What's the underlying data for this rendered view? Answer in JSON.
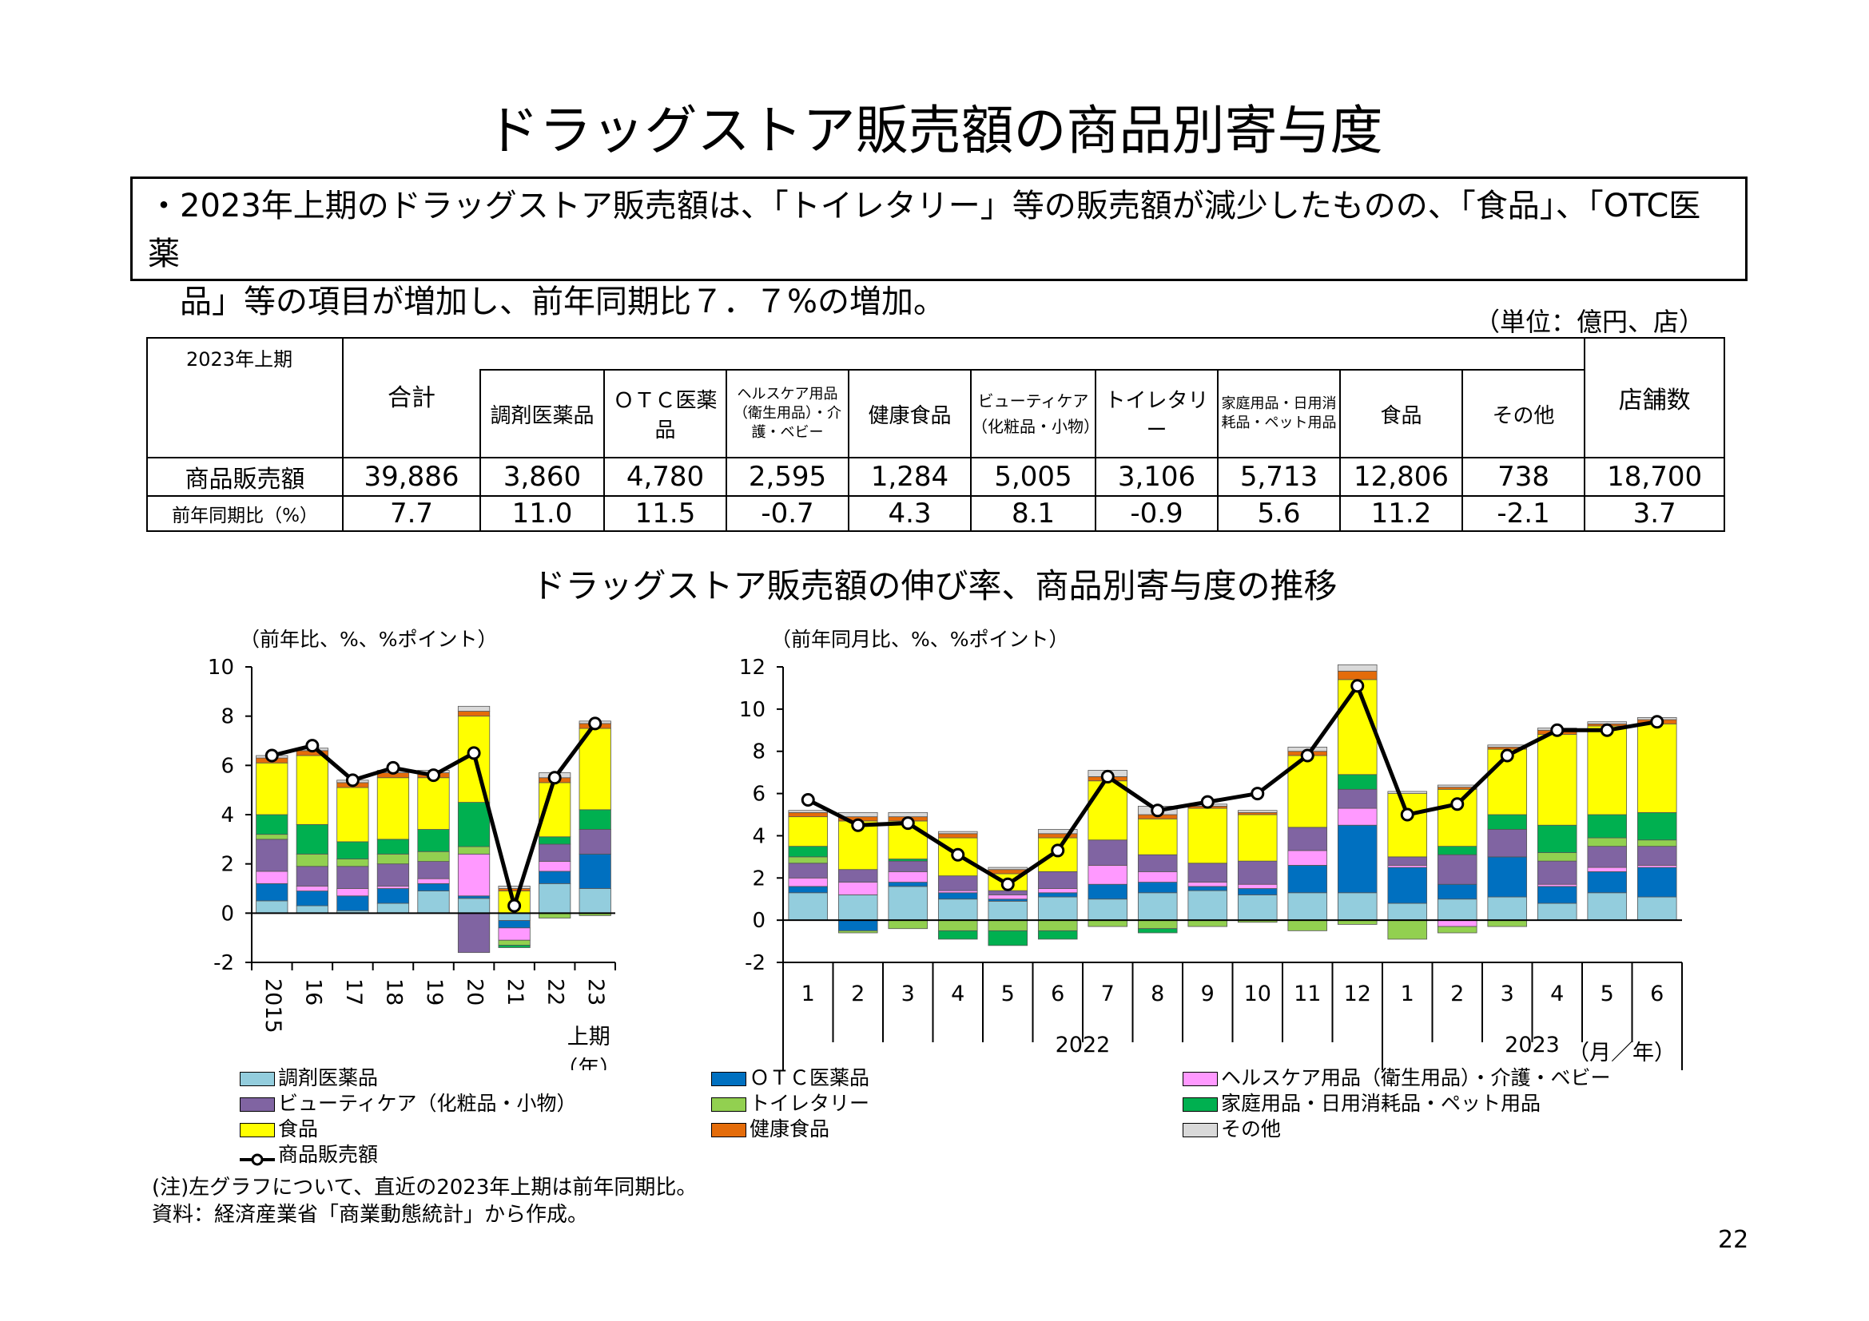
{
  "title": "ドラッグストア販売額の商品別寄与度",
  "summary": {
    "line1": "・2023年上期のドラッグストア販売額は、「トイレタリー」等の販売額が減少したものの、「食品」、「OTC医薬",
    "line2": "　品」等の項目が増加し、前年同期比７．７%の増加。"
  },
  "unit_note": "（単位：億円、店）",
  "table": {
    "period_label": "2023年上期",
    "headers": {
      "total": "合計",
      "dispensing": "調剤医薬品",
      "otc": "ＯＴＣ医薬品",
      "healthcare": "ヘルスケア用品（衛生用品）・介護・ベビー",
      "health_food": "健康食品",
      "beauty": "ビューティケア（化粧品・小物）",
      "toiletry": "トイレタリー",
      "household": "家庭用品・日用消耗品・ペット用品",
      "food": "食品",
      "other": "その他",
      "stores": "店舗数"
    },
    "rows": [
      {
        "label": "商品販売額",
        "values": [
          "39,886",
          "3,860",
          "4,780",
          "2,595",
          "1,284",
          "5,005",
          "3,106",
          "5,713",
          "12,806",
          "738",
          "18,700"
        ]
      },
      {
        "label": "前年同期比（%）",
        "values": [
          "7.7",
          "11.0",
          "11.5",
          "-0.7",
          "4.3",
          "8.1",
          "-0.9",
          "5.6",
          "11.2",
          "-2.1",
          "3.7"
        ]
      }
    ]
  },
  "chart_section_title": "ドラッグストア販売額の伸び率、商品別寄与度の推移",
  "colors": {
    "dispensing": "#93cddd",
    "otc": "#0070c0",
    "healthcare": "#ff99ff",
    "beauty": "#8064a2",
    "toiletry": "#92d050",
    "household": "#00b050",
    "food": "#ffff00",
    "health_food": "#e46c0a",
    "other": "#d9d9d9",
    "line": "#000000"
  },
  "legend": [
    {
      "key": "dispensing",
      "label": "調剤医薬品"
    },
    {
      "key": "otc",
      "label": "ＯＴＣ医薬品"
    },
    {
      "key": "healthcare",
      "label": "ヘルスケア用品（衛生用品）・介護・ベビー"
    },
    {
      "key": "beauty",
      "label": "ビューティケア（化粧品・小物）"
    },
    {
      "key": "toiletry",
      "label": "トイレタリー"
    },
    {
      "key": "household",
      "label": "家庭用品・日用消耗品・ペット用品"
    },
    {
      "key": "food",
      "label": "食品"
    },
    {
      "key": "health_food",
      "label": "健康食品"
    },
    {
      "key": "other",
      "label": "その他"
    },
    {
      "key": "line",
      "label": "商品販売額"
    }
  ],
  "chart_data": [
    {
      "type": "bar",
      "stacked": true,
      "title": "",
      "ylabel": "（前年比、%、%ポイント）",
      "ylim": [
        -2,
        10
      ],
      "yticks": [
        -2,
        0,
        2,
        4,
        6,
        8,
        10
      ],
      "categories": [
        "2015",
        "16",
        "17",
        "18",
        "19",
        "20",
        "21",
        "22",
        "23"
      ],
      "xsub": "上期",
      "xunit": "（年）",
      "series": [
        {
          "key": "dispensing",
          "name": "調剤医薬品",
          "values": [
            0.5,
            0.3,
            0.1,
            0.4,
            0.9,
            0.6,
            -0.3,
            1.2,
            1.0
          ]
        },
        {
          "key": "otc",
          "name": "ＯＴＣ医薬品",
          "values": [
            0.7,
            0.6,
            0.6,
            0.6,
            0.3,
            0.1,
            -0.3,
            0.5,
            1.4
          ]
        },
        {
          "key": "healthcare",
          "name": "ヘルスケア用品（衛生用品）・介護・ベビー",
          "values": [
            0.5,
            0.2,
            0.3,
            0.1,
            0.2,
            1.7,
            -0.5,
            0.4,
            0.0
          ]
        },
        {
          "key": "beauty",
          "name": "ビューティケア（化粧品・小物）",
          "values": [
            1.3,
            0.8,
            0.9,
            0.9,
            0.7,
            -1.6,
            0.0,
            0.7,
            1.0
          ]
        },
        {
          "key": "toiletry",
          "name": "トイレタリー",
          "values": [
            0.2,
            0.5,
            0.3,
            0.4,
            0.4,
            0.3,
            -0.2,
            -0.2,
            -0.1
          ]
        },
        {
          "key": "household",
          "name": "家庭用品・日用消耗品・ペット用品",
          "values": [
            0.8,
            1.2,
            0.7,
            0.6,
            0.9,
            1.8,
            -0.1,
            0.3,
            0.8
          ]
        },
        {
          "key": "food",
          "name": "食品",
          "values": [
            2.1,
            2.8,
            2.2,
            2.5,
            2.1,
            3.5,
            0.9,
            2.2,
            3.3
          ]
        },
        {
          "key": "health_food",
          "name": "健康食品",
          "values": [
            0.2,
            0.2,
            0.2,
            0.2,
            0.2,
            0.2,
            0.1,
            0.2,
            0.2
          ]
        },
        {
          "key": "other",
          "name": "その他",
          "values": [
            0.1,
            0.1,
            0.1,
            0.1,
            0.1,
            0.2,
            0.1,
            0.2,
            0.1
          ]
        }
      ],
      "line": {
        "name": "商品販売額",
        "values": [
          6.4,
          6.8,
          5.4,
          5.9,
          5.6,
          6.5,
          0.3,
          5.5,
          7.7
        ]
      }
    },
    {
      "type": "bar",
      "stacked": true,
      "title": "",
      "ylabel": "（前年同月比、%、%ポイント）",
      "ylim": [
        -2,
        12
      ],
      "yticks": [
        -2,
        0,
        2,
        4,
        6,
        8,
        10,
        12
      ],
      "categories": [
        "1",
        "2",
        "3",
        "4",
        "5",
        "6",
        "7",
        "8",
        "9",
        "10",
        "11",
        "12",
        "1",
        "2",
        "3",
        "4",
        "5",
        "6"
      ],
      "groups": [
        {
          "label": "2022",
          "count": 12
        },
        {
          "label": "2023",
          "count": 6
        }
      ],
      "xunit": "（月／年）",
      "series": [
        {
          "key": "dispensing",
          "name": "調剤医薬品",
          "values": [
            1.3,
            1.2,
            1.6,
            1.0,
            0.9,
            1.1,
            1.0,
            1.3,
            1.4,
            1.2,
            1.3,
            1.3,
            0.8,
            1.0,
            1.1,
            0.8,
            1.3,
            1.1
          ]
        },
        {
          "key": "otc",
          "name": "ＯＴＣ医薬品",
          "values": [
            0.3,
            -0.5,
            0.2,
            0.3,
            0.1,
            0.2,
            0.7,
            0.5,
            0.2,
            0.3,
            1.3,
            3.2,
            1.7,
            0.7,
            1.9,
            0.8,
            1.0,
            1.4
          ]
        },
        {
          "key": "healthcare",
          "name": "ヘルスケア用品（衛生用品）・介護・ベビー",
          "values": [
            0.4,
            0.6,
            0.5,
            0.1,
            0.2,
            0.2,
            0.9,
            0.5,
            0.2,
            0.2,
            0.7,
            0.8,
            0.1,
            -0.3,
            0.0,
            0.1,
            0.2,
            0.1
          ]
        },
        {
          "key": "beauty",
          "name": "ビューティケア（化粧品・小物）",
          "values": [
            0.7,
            0.6,
            0.5,
            0.7,
            0.2,
            0.8,
            1.2,
            0.8,
            0.9,
            1.1,
            1.1,
            0.9,
            0.4,
            1.4,
            1.3,
            1.1,
            1.0,
            0.9
          ]
        },
        {
          "key": "toiletry",
          "name": "トイレタリー",
          "values": [
            0.3,
            -0.1,
            -0.4,
            -0.5,
            -0.5,
            -0.5,
            -0.3,
            -0.4,
            -0.3,
            -0.1,
            -0.5,
            -0.2,
            -0.9,
            -0.3,
            -0.3,
            0.4,
            0.4,
            0.3
          ]
        },
        {
          "key": "household",
          "name": "家庭用品・日用消耗品・ペット用品",
          "values": [
            0.5,
            0.0,
            0.1,
            -0.4,
            -0.7,
            -0.4,
            0.0,
            -0.2,
            0.0,
            0.0,
            0.0,
            0.7,
            0.0,
            0.4,
            0.7,
            1.3,
            1.1,
            1.3
          ]
        },
        {
          "key": "food",
          "name": "食品",
          "values": [
            1.4,
            2.3,
            1.8,
            1.8,
            0.8,
            1.6,
            2.8,
            1.7,
            2.6,
            2.2,
            3.4,
            4.5,
            3.0,
            2.7,
            3.1,
            4.3,
            4.2,
            4.2
          ]
        },
        {
          "key": "health_food",
          "name": "健康食品",
          "values": [
            0.2,
            0.2,
            0.2,
            0.2,
            0.2,
            0.2,
            0.2,
            0.2,
            0.1,
            0.1,
            0.2,
            0.4,
            0.0,
            0.1,
            0.1,
            0.2,
            0.1,
            0.2
          ]
        },
        {
          "key": "other",
          "name": "その他",
          "values": [
            0.1,
            0.2,
            0.2,
            0.1,
            0.1,
            0.2,
            0.3,
            0.4,
            0.1,
            0.1,
            0.2,
            0.3,
            0.1,
            0.1,
            0.1,
            0.1,
            0.1,
            0.1
          ]
        }
      ],
      "line": {
        "name": "商品販売額",
        "values": [
          5.7,
          4.5,
          4.6,
          3.1,
          1.7,
          3.3,
          6.8,
          5.2,
          5.6,
          6.0,
          7.8,
          11.1,
          5.0,
          5.5,
          7.8,
          9.0,
          9.0,
          9.4
        ]
      }
    }
  ],
  "notes": {
    "note1": "(注)左グラフについて、直近の2023年上期は前年同期比。",
    "note2": "資料：経済産業省「商業動態統計」から作成。"
  },
  "page_number": "22"
}
